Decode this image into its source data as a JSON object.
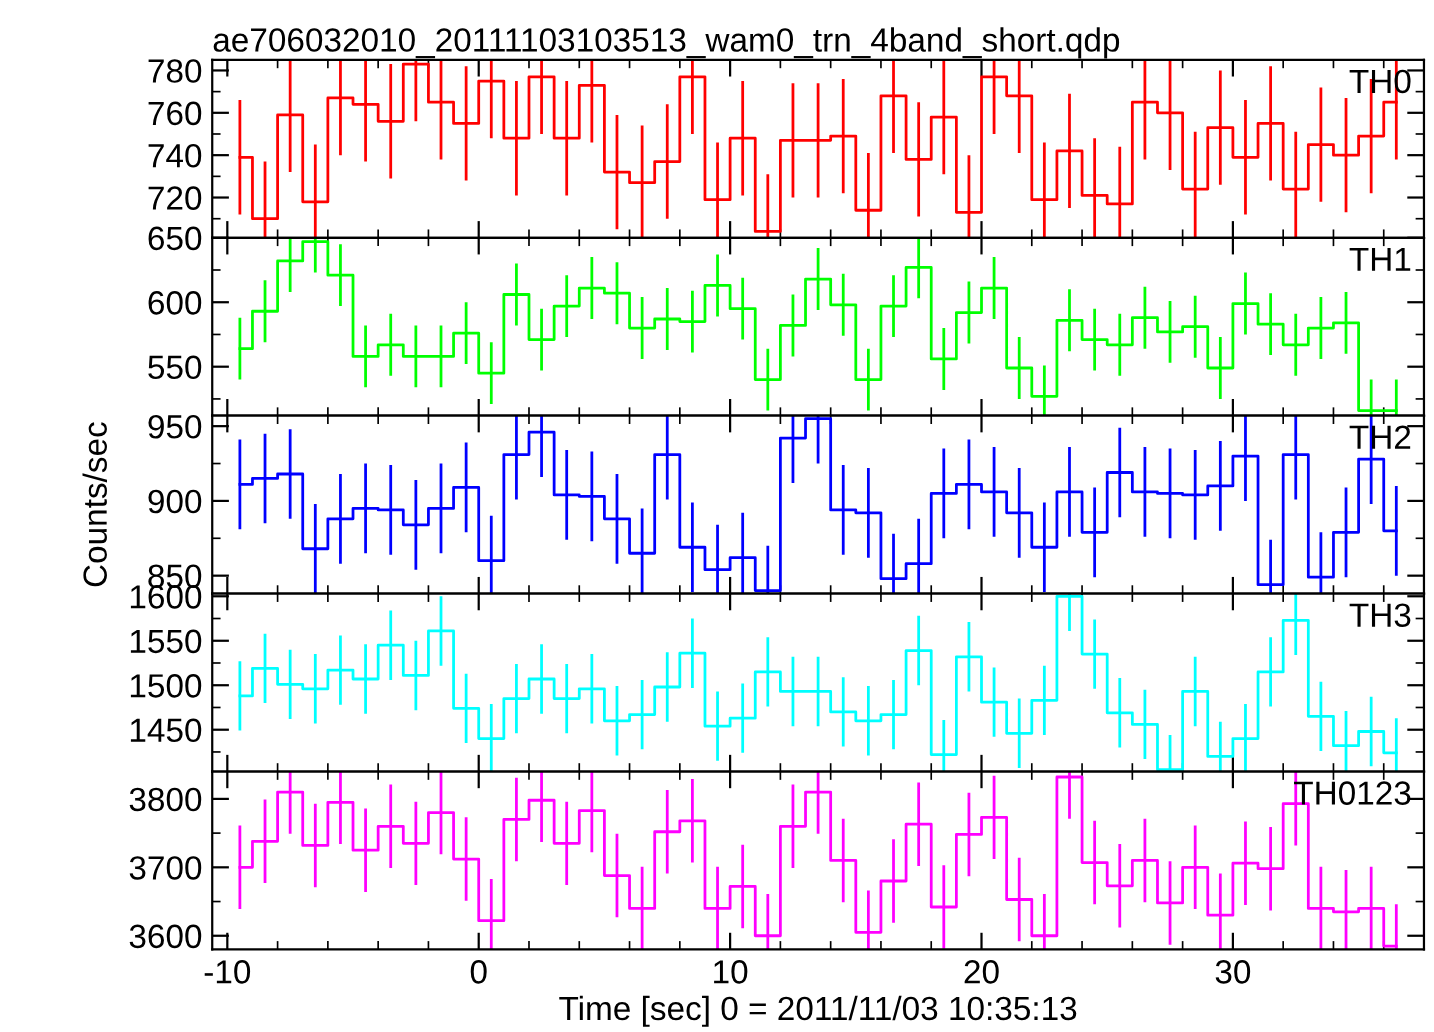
{
  "chart_data": [
    {
      "type": "step",
      "title": "ae706032010_20111103103513_wam0_trn_4band_short.qdp",
      "tick_labels": "y",
      "xlim": [
        -10.6,
        37.6
      ],
      "xticks": [
        -10,
        0,
        10,
        20,
        30
      ],
      "ylim": [
        701,
        785
      ],
      "yticks": [
        720,
        740,
        760,
        780
      ],
      "x": [
        -9.5,
        -8.5,
        -7.5,
        -6.5,
        -5.5,
        -4.5,
        -3.5,
        -2.5,
        -1.5,
        -0.5,
        0.5,
        1.5,
        2.5,
        3.5,
        4.5,
        5.5,
        6.5,
        7.5,
        8.5,
        9.5,
        10.5,
        11.5,
        12.5,
        13.5,
        14.5,
        15.5,
        16.5,
        17.5,
        18.5,
        19.5,
        20.5,
        21.5,
        22.5,
        23.5,
        24.5,
        25.5,
        26.5,
        27.5,
        28.5,
        29.5,
        30.5,
        31.5,
        32.5,
        33.5,
        34.5,
        35.5,
        36.5
      ],
      "series": [
        {
          "name": "TH0",
          "color": "#ff0000",
          "values": [
            739,
            710,
            759,
            718,
            767,
            764,
            756,
            783,
            765,
            755,
            775,
            748,
            777,
            748,
            773,
            732,
            727,
            737,
            777,
            719,
            748,
            704,
            747,
            747,
            749,
            714,
            768,
            738,
            758,
            713,
            777,
            768,
            719,
            742,
            721,
            717,
            765,
            760,
            724,
            753,
            739,
            755,
            724,
            745,
            740,
            749,
            765
          ],
          "errors": [
            27,
            27,
            27,
            27,
            27,
            27,
            27,
            27,
            27,
            27,
            27,
            27,
            27,
            27,
            27,
            27,
            27,
            27,
            27,
            27,
            27,
            27,
            27,
            27,
            27,
            27,
            27,
            27,
            27,
            27,
            27,
            27,
            27,
            27,
            27,
            27,
            27,
            27,
            27,
            27,
            27,
            27,
            27,
            27,
            27,
            27,
            27
          ]
        }
      ]
    },
    {
      "type": "step",
      "tick_labels": "y",
      "xlim": [
        -10.6,
        37.6
      ],
      "xticks": [
        -10,
        0,
        10,
        20,
        30
      ],
      "ylim": [
        512,
        650
      ],
      "yticks": [
        550,
        600,
        650
      ],
      "x": [
        -9.5,
        -8.5,
        -7.5,
        -6.5,
        -5.5,
        -4.5,
        -3.5,
        -2.5,
        -1.5,
        -0.5,
        0.5,
        1.5,
        2.5,
        3.5,
        4.5,
        5.5,
        6.5,
        7.5,
        8.5,
        9.5,
        10.5,
        11.5,
        12.5,
        13.5,
        14.5,
        15.5,
        16.5,
        17.5,
        18.5,
        19.5,
        20.5,
        21.5,
        22.5,
        23.5,
        24.5,
        25.5,
        26.5,
        27.5,
        28.5,
        29.5,
        30.5,
        31.5,
        32.5,
        33.5,
        34.5,
        35.5,
        36.5
      ],
      "series": [
        {
          "name": "TH1",
          "color": "#00ff00",
          "values": [
            564,
            593,
            632,
            647,
            621,
            558,
            567,
            558,
            558,
            576,
            545,
            606,
            571,
            597,
            611,
            607,
            580,
            587,
            585,
            613,
            595,
            540,
            582,
            618,
            598,
            540,
            597,
            627,
            556,
            592,
            611,
            549,
            527,
            586,
            571,
            567,
            588,
            577,
            581,
            549,
            599,
            583,
            567,
            580,
            584,
            516,
            516
          ],
          "errors": [
            24,
            24,
            24,
            24,
            24,
            24,
            24,
            24,
            24,
            24,
            24,
            24,
            24,
            24,
            24,
            24,
            24,
            24,
            24,
            24,
            24,
            24,
            24,
            24,
            24,
            24,
            24,
            24,
            24,
            24,
            24,
            24,
            24,
            24,
            24,
            24,
            24,
            24,
            24,
            24,
            24,
            24,
            24,
            24,
            24,
            24,
            24
          ]
        }
      ]
    },
    {
      "type": "step",
      "tick_labels": "y",
      "ylabel": "Counts/sec",
      "xlim": [
        -10.6,
        37.6
      ],
      "xticks": [
        -10,
        0,
        10,
        20,
        30
      ],
      "ylim": [
        838,
        957
      ],
      "yticks": [
        850,
        900,
        950
      ],
      "x": [
        -9.5,
        -8.5,
        -7.5,
        -6.5,
        -5.5,
        -4.5,
        -3.5,
        -2.5,
        -1.5,
        -0.5,
        0.5,
        1.5,
        2.5,
        3.5,
        4.5,
        5.5,
        6.5,
        7.5,
        8.5,
        9.5,
        10.5,
        11.5,
        12.5,
        13.5,
        14.5,
        15.5,
        16.5,
        17.5,
        18.5,
        19.5,
        20.5,
        21.5,
        22.5,
        23.5,
        24.5,
        25.5,
        26.5,
        27.5,
        28.5,
        29.5,
        30.5,
        31.5,
        32.5,
        33.5,
        34.5,
        35.5,
        36.5
      ],
      "series": [
        {
          "name": "TH2",
          "color": "#0000ff",
          "values": [
            911,
            915,
            918,
            868,
            888,
            895,
            894,
            884,
            895,
            909,
            860,
            931,
            946,
            904,
            903,
            888,
            865,
            931,
            869,
            854,
            862,
            840,
            942,
            955,
            894,
            892,
            848,
            858,
            905,
            911,
            906,
            892,
            869,
            906,
            879,
            919,
            906,
            905,
            904,
            910,
            930,
            844,
            931,
            849,
            879,
            928,
            880
          ],
          "errors": [
            30,
            30,
            30,
            30,
            30,
            30,
            30,
            30,
            30,
            30,
            30,
            30,
            30,
            30,
            30,
            30,
            30,
            30,
            30,
            30,
            30,
            30,
            30,
            30,
            30,
            30,
            30,
            30,
            30,
            30,
            30,
            30,
            30,
            30,
            30,
            30,
            30,
            30,
            30,
            30,
            30,
            30,
            30,
            30,
            30,
            30,
            30
          ]
        }
      ]
    },
    {
      "type": "step",
      "tick_labels": "y",
      "xlim": [
        -10.6,
        37.6
      ],
      "xticks": [
        -10,
        0,
        10,
        20,
        30
      ],
      "ylim": [
        1403,
        1603
      ],
      "yticks": [
        1450,
        1500,
        1550,
        1600
      ],
      "x": [
        -9.5,
        -8.5,
        -7.5,
        -6.5,
        -5.5,
        -4.5,
        -3.5,
        -2.5,
        -1.5,
        -0.5,
        0.5,
        1.5,
        2.5,
        3.5,
        4.5,
        5.5,
        6.5,
        7.5,
        8.5,
        9.5,
        10.5,
        11.5,
        12.5,
        13.5,
        14.5,
        15.5,
        16.5,
        17.5,
        18.5,
        19.5,
        20.5,
        21.5,
        22.5,
        23.5,
        24.5,
        25.5,
        26.5,
        27.5,
        28.5,
        29.5,
        30.5,
        31.5,
        32.5,
        33.5,
        34.5,
        35.5,
        36.5
      ],
      "series": [
        {
          "name": "TH3",
          "color": "#00ffff",
          "values": [
            1488,
            1519,
            1501,
            1496,
            1517,
            1507,
            1545,
            1511,
            1561,
            1474,
            1440,
            1485,
            1507,
            1485,
            1496,
            1460,
            1467,
            1498,
            1536,
            1454,
            1463,
            1515,
            1493,
            1493,
            1470,
            1460,
            1467,
            1539,
            1422,
            1532,
            1481,
            1446,
            1483,
            1600,
            1535,
            1469,
            1456,
            1405,
            1493,
            1420,
            1440,
            1515,
            1573,
            1465,
            1432,
            1448,
            1424
          ],
          "errors": [
            39,
            39,
            39,
            39,
            39,
            39,
            39,
            39,
            39,
            39,
            39,
            39,
            39,
            39,
            39,
            39,
            39,
            39,
            39,
            39,
            39,
            39,
            39,
            39,
            39,
            39,
            39,
            39,
            39,
            39,
            39,
            39,
            39,
            39,
            39,
            39,
            39,
            39,
            39,
            39,
            39,
            39,
            39,
            39,
            39,
            39,
            39
          ]
        }
      ]
    },
    {
      "type": "step",
      "xlabel": "Time [sec] 0 = 2011/11/03 10:35:13",
      "xlim": [
        -10.6,
        37.6
      ],
      "xticks": [
        -10,
        0,
        10,
        20,
        30
      ],
      "ylim": [
        3580,
        3840
      ],
      "yticks": [
        3600,
        3700,
        3800
      ],
      "x": [
        -9.5,
        -8.5,
        -7.5,
        -6.5,
        -5.5,
        -4.5,
        -3.5,
        -2.5,
        -1.5,
        -0.5,
        0.5,
        1.5,
        2.5,
        3.5,
        4.5,
        5.5,
        6.5,
        7.5,
        8.5,
        9.5,
        10.5,
        11.5,
        12.5,
        13.5,
        14.5,
        15.5,
        16.5,
        17.5,
        18.5,
        19.5,
        20.5,
        21.5,
        22.5,
        23.5,
        24.5,
        25.5,
        26.5,
        27.5,
        28.5,
        29.5,
        30.5,
        31.5,
        32.5,
        33.5,
        34.5,
        35.5,
        36.5
      ],
      "series": [
        {
          "name": "TH0123",
          "color": "#ff00ff",
          "values": [
            3700,
            3738,
            3810,
            3732,
            3795,
            3725,
            3760,
            3735,
            3780,
            3712,
            3622,
            3770,
            3798,
            3735,
            3783,
            3688,
            3640,
            3752,
            3768,
            3640,
            3672,
            3600,
            3760,
            3810,
            3710,
            3605,
            3680,
            3763,
            3642,
            3748,
            3773,
            3653,
            3600,
            3832,
            3707,
            3673,
            3710,
            3648,
            3700,
            3630,
            3706,
            3698,
            3793,
            3640,
            3635,
            3640,
            3585
          ],
          "errors": [
            61,
            61,
            61,
            61,
            61,
            61,
            61,
            61,
            61,
            61,
            61,
            61,
            61,
            61,
            61,
            61,
            61,
            61,
            61,
            61,
            61,
            61,
            61,
            61,
            61,
            61,
            61,
            61,
            61,
            61,
            61,
            61,
            61,
            61,
            61,
            61,
            61,
            61,
            61,
            61,
            61,
            61,
            61,
            61,
            61,
            61,
            61
          ]
        }
      ]
    }
  ]
}
